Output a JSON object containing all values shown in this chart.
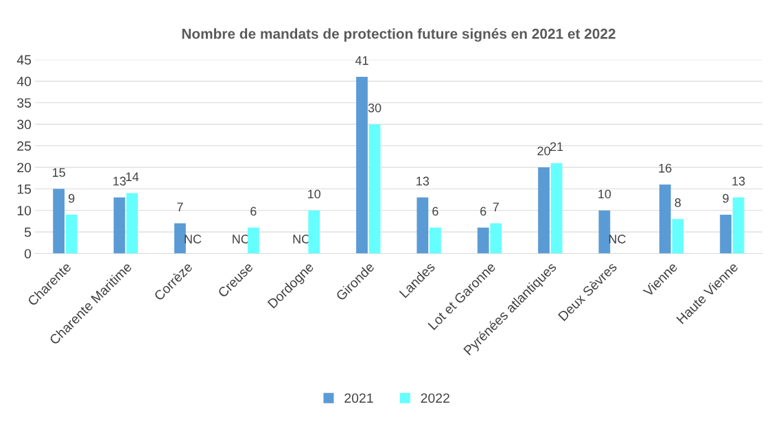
{
  "chart_data": {
    "type": "bar",
    "title": "Nombre de mandats de protection future signés en 2021 et 2022",
    "categories": [
      "Charente",
      "Charente Maritime",
      "Corrèze",
      "Creuse",
      "Dordogne",
      "Gironde",
      "Landes",
      "Lot et Garonne",
      "Pyrénées atlantiques",
      "Deux Sèvres",
      "Vienne",
      "Haute Vienne"
    ],
    "series": [
      {
        "name": "2021",
        "color": "#5b9bd5",
        "values": [
          15,
          13,
          7,
          null,
          null,
          41,
          13,
          6,
          20,
          10,
          16,
          9
        ],
        "value_labels": [
          "15",
          "13",
          "7",
          "NC",
          "NC",
          "41",
          "13",
          "6",
          "20",
          "10",
          "16",
          "9"
        ]
      },
      {
        "name": "2022",
        "color": "#66ffff",
        "values": [
          9,
          14,
          null,
          6,
          10,
          30,
          6,
          7,
          21,
          null,
          8,
          13
        ],
        "value_labels": [
          "9",
          "14",
          "NC",
          "6",
          "10",
          "30",
          "6",
          "7",
          "21",
          "NC",
          "8",
          "13"
        ]
      }
    ],
    "ylim": [
      0,
      45
    ],
    "yticks": [
      0,
      5,
      10,
      15,
      20,
      25,
      30,
      35,
      40,
      45
    ],
    "grid": "y",
    "legend": "bottom"
  }
}
